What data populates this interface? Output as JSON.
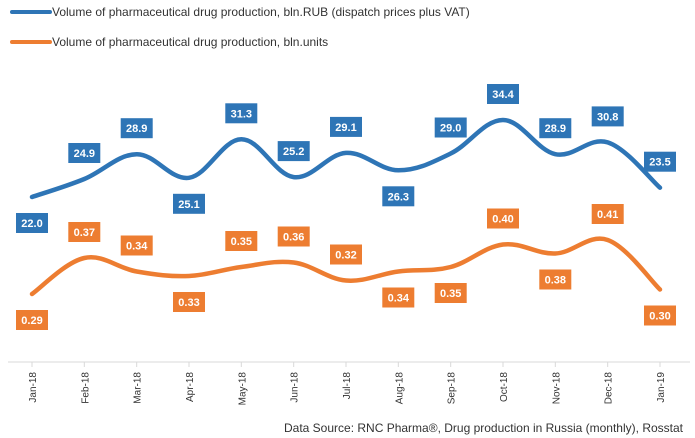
{
  "chart_data": {
    "type": "line",
    "categories": [
      "Jan-18",
      "Feb-18",
      "Mar-18",
      "Apr-18",
      "May-18",
      "Jun-18",
      "Jul-18",
      "Aug-18",
      "Sep-18",
      "Oct-18",
      "Nov-18",
      "Dec-18",
      "Jan-19"
    ],
    "series": [
      {
        "name": "Volume of pharmaceutical drug production, bln.RUB (dispatch prices plus VAT)",
        "color": "#2e75b6",
        "values": [
          22.0,
          24.9,
          28.9,
          25.1,
          31.3,
          25.2,
          29.1,
          26.3,
          29.0,
          34.4,
          28.9,
          30.8,
          23.5
        ],
        "labels": [
          "22.0",
          "24.9",
          "28.9",
          "25.1",
          "31.3",
          "25.2",
          "29.1",
          "26.3",
          "29.0",
          "34.4",
          "28.9",
          "30.8",
          "23.5"
        ]
      },
      {
        "name": "Volume of pharmaceutical drug production, bln.units",
        "color": "#ed7d31",
        "values": [
          0.29,
          0.37,
          0.34,
          0.33,
          0.35,
          0.36,
          0.32,
          0.34,
          0.35,
          0.4,
          0.38,
          0.41,
          0.3
        ],
        "labels": [
          "0.29",
          "0.37",
          "0.34",
          "0.33",
          "0.35",
          "0.36",
          "0.32",
          "0.34",
          "0.35",
          "0.40",
          "0.38",
          "0.41",
          "0.30"
        ]
      }
    ],
    "grid": false,
    "legend": "top-left"
  },
  "source": "Data Source: RNC Pharma®, Drug production in Russia (monthly), Rosstat"
}
